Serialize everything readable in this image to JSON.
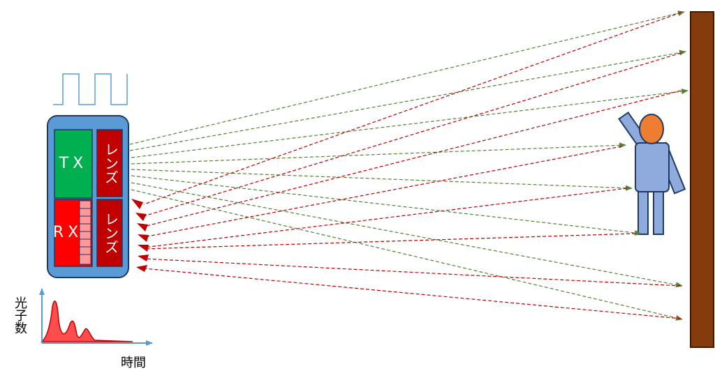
{
  "device": {
    "tx_label": "TX",
    "rx_label": "RX",
    "tx_lens_label": "レンズ",
    "rx_lens_label": "レンズ"
  },
  "graph": {
    "y_label": "光子数",
    "x_label": "時間"
  }
}
